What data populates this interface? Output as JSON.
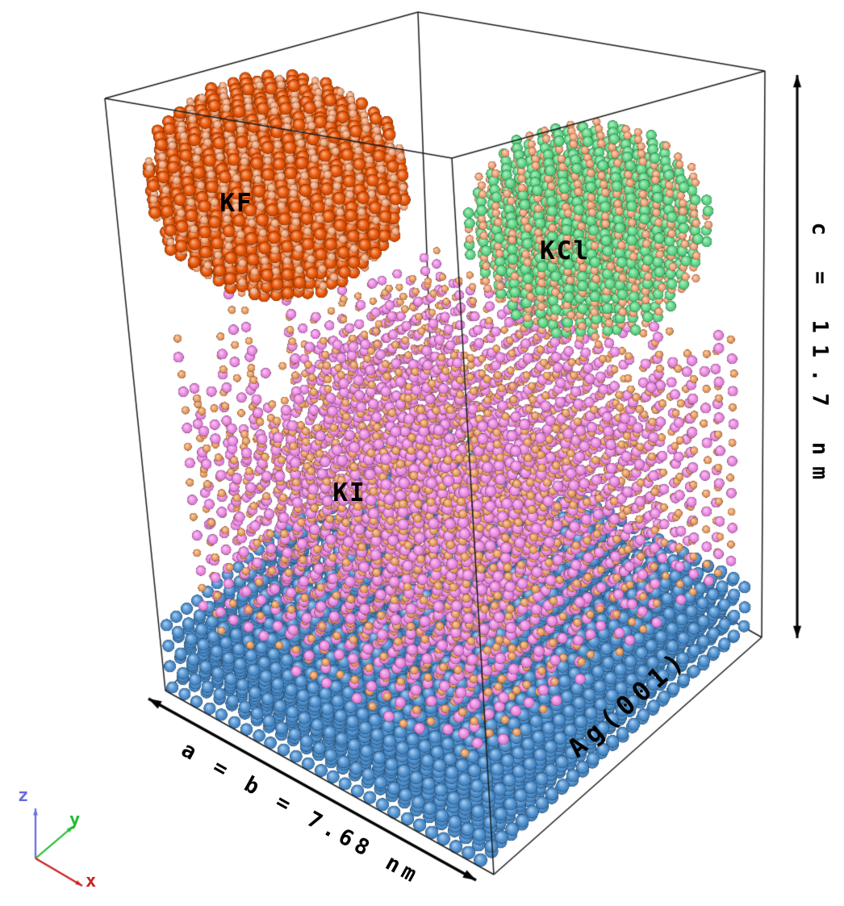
{
  "figure": {
    "labels": {
      "kf": "KF",
      "kcl": "KCl",
      "ki": "KI",
      "substrate": "Ag(001)",
      "dim_ab": "a = b = 7.68 nm",
      "dim_c": "c = 11.7 nm"
    },
    "axes": {
      "x": "x",
      "y": "y",
      "z": "z",
      "x_color": "#cc2222",
      "y_color": "#22bb33",
      "z_color": "#6a6ae0"
    },
    "colors": {
      "background": "#ffffff",
      "box_edge": "#1a1a1a",
      "annotation": "#000000",
      "ag": "#5094d4",
      "iodide": "#ee8be4",
      "potassium": "#eb9d60",
      "fluoride": "#ea5607",
      "kf_potassium": "#f2a377",
      "chloride": "#5fd987",
      "kcl_potassium": "#f2a377"
    },
    "scene": {
      "box": {
        "aspect": 0.656,
        "corners": {
          "p000": [
            205,
            856
          ],
          "p100": [
            612,
            1084
          ],
          "p010": [
            538,
            560
          ],
          "p110": [
            944,
            790
          ],
          "p001": [
            130,
            122
          ],
          "p101": [
            560,
            196
          ],
          "p011": [
            518,
            15
          ],
          "p111": [
            948,
            88
          ]
        }
      },
      "substrate": {
        "u0": 0.012,
        "v0": 0.012,
        "u1": 0.972,
        "v1": 0.972,
        "spacing": 0.0376,
        "layers": 7,
        "dw": 0.0175,
        "w0": 0.004,
        "radius": 8.8
      },
      "film": {
        "u0": 0.03,
        "v0": 0.03,
        "u1": 0.93,
        "v1": 0.95,
        "spacing": 0.046,
        "w0": 0.138,
        "dw": 0.03,
        "radius_i": 7.4,
        "radius_k": 5.7
      },
      "kf_cluster": {
        "cu": 0.13,
        "cv": 0.38,
        "cw": 0.8,
        "r": 0.29,
        "spacing": 0.035,
        "radius_a": 8.6,
        "radius_b": 5.6
      },
      "kcl_cluster": {
        "cu": 0.75,
        "cv": 0.7,
        "cw": 0.75,
        "r": 0.27,
        "spacing": 0.041,
        "radius_a": 7.3,
        "radius_b": 5.6
      },
      "annotations": {
        "c_arrow": [
          988,
          93,
          988,
          791
        ],
        "ab_arrow": [
          184,
          866,
          590,
          1091
        ],
        "axes_origin": [
          44,
          1064
        ],
        "axis_z": [
          0,
          -62
        ],
        "axis_y": [
          47,
          -40
        ],
        "axis_x": [
          58,
          34
        ]
      }
    }
  }
}
